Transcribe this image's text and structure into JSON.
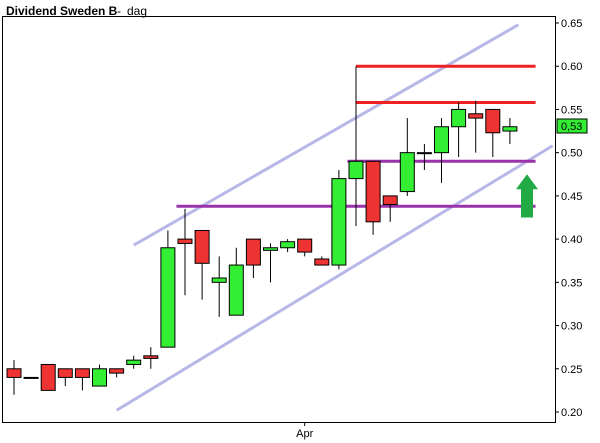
{
  "chart_data": {
    "type": "candlestick",
    "title": "Dividend Sweden B",
    "subtitle": "dag",
    "title_separator": "-",
    "x_tick_labels": [
      {
        "label": "Apr",
        "at_candle": 17
      }
    ],
    "y_axis": {
      "side": "right",
      "ylim": [
        0.2,
        0.65
      ],
      "ticks": [
        0.2,
        0.25,
        0.3,
        0.35,
        0.4,
        0.45,
        0.5,
        0.55,
        0.6,
        0.65
      ]
    },
    "grid": false,
    "last_price_label": "0,53",
    "colors": {
      "up": "#33ee33",
      "down": "#ee3333",
      "resistance": "#ee2222",
      "support": "#9933aa",
      "channel": "#b8b8e8",
      "arrow": "#22aa44"
    },
    "candles": [
      {
        "open": 0.25,
        "close": 0.24,
        "high": 0.26,
        "low": 0.22
      },
      {
        "open": 0.24,
        "close": 0.24,
        "high": 0.24,
        "low": 0.24
      },
      {
        "open": 0.255,
        "close": 0.225,
        "high": 0.255,
        "low": 0.225
      },
      {
        "open": 0.25,
        "close": 0.24,
        "high": 0.25,
        "low": 0.23
      },
      {
        "open": 0.25,
        "close": 0.24,
        "high": 0.25,
        "low": 0.225
      },
      {
        "open": 0.23,
        "close": 0.25,
        "high": 0.255,
        "low": 0.23
      },
      {
        "open": 0.25,
        "close": 0.245,
        "high": 0.25,
        "low": 0.24
      },
      {
        "open": 0.255,
        "close": 0.26,
        "high": 0.265,
        "low": 0.25
      },
      {
        "open": 0.265,
        "close": 0.262,
        "high": 0.275,
        "low": 0.25
      },
      {
        "open": 0.275,
        "close": 0.39,
        "high": 0.41,
        "low": 0.275
      },
      {
        "open": 0.4,
        "close": 0.395,
        "high": 0.435,
        "low": 0.335
      },
      {
        "open": 0.41,
        "close": 0.372,
        "high": 0.41,
        "low": 0.33
      },
      {
        "open": 0.35,
        "close": 0.355,
        "high": 0.38,
        "low": 0.31
      },
      {
        "open": 0.312,
        "close": 0.37,
        "high": 0.39,
        "low": 0.312
      },
      {
        "open": 0.4,
        "close": 0.37,
        "high": 0.4,
        "low": 0.355
      },
      {
        "open": 0.387,
        "close": 0.39,
        "high": 0.395,
        "low": 0.35
      },
      {
        "open": 0.39,
        "close": 0.397,
        "high": 0.4,
        "low": 0.385
      },
      {
        "open": 0.4,
        "close": 0.385,
        "high": 0.4,
        "low": 0.38
      },
      {
        "open": 0.377,
        "close": 0.37,
        "high": 0.38,
        "low": 0.37
      },
      {
        "open": 0.37,
        "close": 0.47,
        "high": 0.48,
        "low": 0.365
      },
      {
        "open": 0.47,
        "close": 0.49,
        "high": 0.6,
        "low": 0.415
      },
      {
        "open": 0.49,
        "close": 0.42,
        "high": 0.49,
        "low": 0.405
      },
      {
        "open": 0.45,
        "close": 0.44,
        "high": 0.45,
        "low": 0.42
      },
      {
        "open": 0.455,
        "close": 0.5,
        "high": 0.54,
        "low": 0.45
      },
      {
        "open": 0.5,
        "close": 0.5,
        "high": 0.51,
        "low": 0.48
      },
      {
        "open": 0.5,
        "close": 0.53,
        "high": 0.54,
        "low": 0.465
      },
      {
        "open": 0.53,
        "close": 0.55,
        "high": 0.558,
        "low": 0.495
      },
      {
        "open": 0.545,
        "close": 0.54,
        "high": 0.56,
        "low": 0.5
      },
      {
        "open": 0.55,
        "close": 0.523,
        "high": 0.55,
        "low": 0.495
      },
      {
        "open": 0.525,
        "close": 0.53,
        "high": 0.54,
        "low": 0.51
      }
    ],
    "horizontal_lines": [
      {
        "kind": "resistance",
        "y": 0.6,
        "from_candle": 20,
        "to_candle": 30.5
      },
      {
        "kind": "resistance",
        "y": 0.558,
        "from_candle": 20,
        "to_candle": 30.5
      },
      {
        "kind": "support",
        "y": 0.49,
        "from_candle": 19.5,
        "to_candle": 30.5
      },
      {
        "kind": "support",
        "y": 0.438,
        "from_candle": 9.5,
        "to_candle": 30.5
      }
    ],
    "trend_channel": [
      {
        "from": {
          "candle": 7,
          "y": 0.393
        },
        "to": {
          "candle": 29.5,
          "y": 0.648
        }
      },
      {
        "from": {
          "candle": 6,
          "y": 0.202
        },
        "to": {
          "candle": 31.5,
          "y": 0.508
        }
      }
    ],
    "arrow": {
      "direction": "up",
      "candle": 30,
      "tip_y": 0.475,
      "base_y": 0.425
    }
  }
}
